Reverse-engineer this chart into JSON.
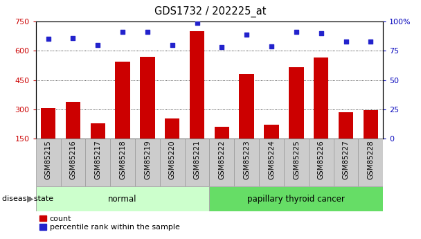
{
  "title": "GDS1732 / 202225_at",
  "categories": [
    "GSM85215",
    "GSM85216",
    "GSM85217",
    "GSM85218",
    "GSM85219",
    "GSM85220",
    "GSM85221",
    "GSM85222",
    "GSM85223",
    "GSM85224",
    "GSM85225",
    "GSM85226",
    "GSM85227",
    "GSM85228"
  ],
  "count_values": [
    305,
    340,
    228,
    545,
    570,
    255,
    700,
    210,
    480,
    220,
    515,
    565,
    285,
    295
  ],
  "percentile_values": [
    85,
    86,
    80,
    91,
    91,
    80,
    99,
    78,
    89,
    79,
    91,
    90,
    83,
    83
  ],
  "group_labels": [
    "normal",
    "papillary thyroid cancer"
  ],
  "group_sizes": [
    7,
    7
  ],
  "normal_color": "#ccffcc",
  "cancer_color": "#66dd66",
  "ylim_left": [
    150,
    750
  ],
  "ylim_right": [
    0,
    100
  ],
  "yticks_left": [
    150,
    300,
    450,
    600,
    750
  ],
  "yticks_right": [
    0,
    25,
    50,
    75,
    100
  ],
  "bar_color": "#cc0000",
  "dot_color": "#2222cc",
  "plot_bg": "#ffffff",
  "xtick_bg": "#cccccc",
  "legend_count_label": "count",
  "legend_pct_label": "percentile rank within the sample",
  "disease_state_label": "disease state",
  "left_tick_color": "#cc0000",
  "right_tick_color": "#0000bb",
  "figsize": [
    6.08,
    3.45
  ],
  "dpi": 100
}
